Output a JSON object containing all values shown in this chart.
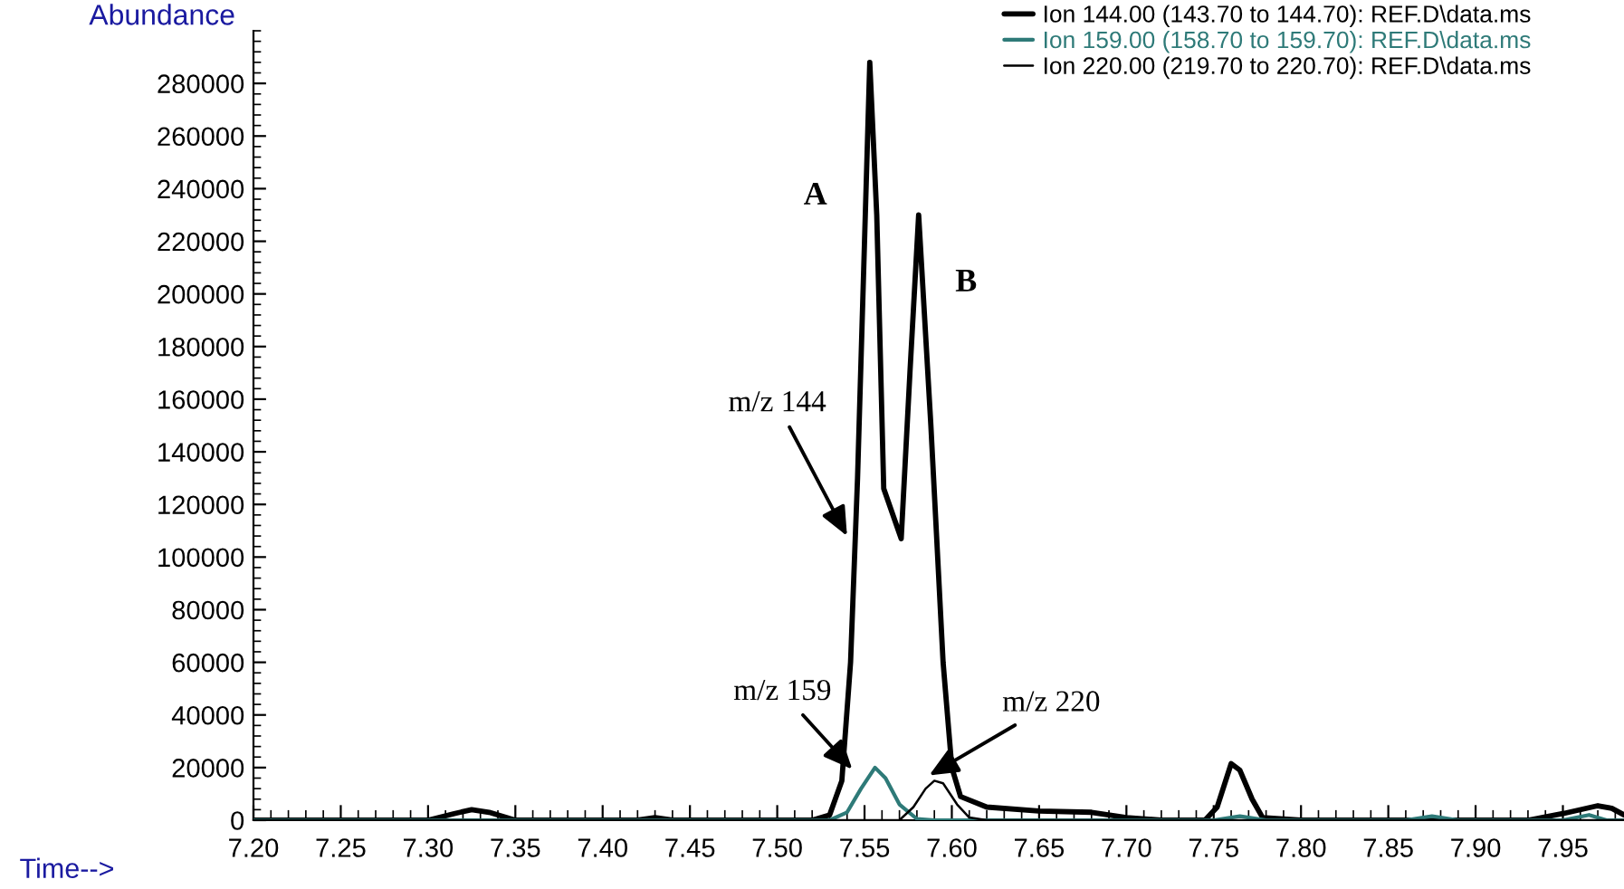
{
  "chart_data": {
    "type": "line",
    "ylabel": "Abundance",
    "xlabel": "Time-->",
    "xlim": [
      7.2,
      7.985
    ],
    "ylim": [
      0,
      300000
    ],
    "xticks": [
      {
        "value": 7.2,
        "label": "7.20"
      },
      {
        "value": 7.25,
        "label": "7.25"
      },
      {
        "value": 7.3,
        "label": "7.30"
      },
      {
        "value": 7.35,
        "label": "7.35"
      },
      {
        "value": 7.4,
        "label": "7.40"
      },
      {
        "value": 7.45,
        "label": "7.45"
      },
      {
        "value": 7.5,
        "label": "7.50"
      },
      {
        "value": 7.55,
        "label": "7.55"
      },
      {
        "value": 7.6,
        "label": "7.60"
      },
      {
        "value": 7.65,
        "label": "7.65"
      },
      {
        "value": 7.7,
        "label": "7.70"
      },
      {
        "value": 7.75,
        "label": "7.75"
      },
      {
        "value": 7.8,
        "label": "7.80"
      },
      {
        "value": 7.85,
        "label": "7.85"
      },
      {
        "value": 7.9,
        "label": "7.90"
      },
      {
        "value": 7.95,
        "label": "7.95"
      }
    ],
    "yticks": [
      0,
      20000,
      40000,
      60000,
      80000,
      100000,
      120000,
      140000,
      160000,
      180000,
      200000,
      220000,
      240000,
      260000,
      280000
    ],
    "grid": false,
    "legend": "top",
    "marker": "none",
    "line_style": "solid",
    "series": [
      {
        "name": "Ion 144.00 (143.70 to 144.70): REF.D\\data.ms",
        "color": "#000000",
        "x": [
          7.2,
          7.3,
          7.315,
          7.325,
          7.335,
          7.35,
          7.42,
          7.43,
          7.44,
          7.52,
          7.53,
          7.537,
          7.542,
          7.546,
          7.55,
          7.553,
          7.557,
          7.561,
          7.571,
          7.576,
          7.581,
          7.588,
          7.595,
          7.6,
          7.605,
          7.62,
          7.65,
          7.68,
          7.7,
          7.72,
          7.745,
          7.752,
          7.76,
          7.765,
          7.772,
          7.778,
          7.8,
          7.93,
          7.95,
          7.97,
          7.978,
          7.985
        ],
        "values": [
          0,
          0,
          2500,
          4000,
          3000,
          0,
          0,
          1000,
          0,
          0,
          2000,
          15000,
          60000,
          130000,
          220000,
          288000,
          230000,
          126000,
          107000,
          170000,
          230000,
          150000,
          60000,
          20000,
          9000,
          5000,
          3500,
          3000,
          1000,
          0,
          0,
          5000,
          21500,
          19000,
          8000,
          1000,
          0,
          0,
          2500,
          5500,
          4500,
          2000
        ]
      },
      {
        "name": "Ion 159.00 (158.70 to 159.70): REF.D\\data.ms",
        "color": "#2e7a78",
        "x": [
          7.2,
          7.53,
          7.54,
          7.548,
          7.556,
          7.562,
          7.57,
          7.58,
          7.59,
          7.75,
          7.765,
          7.78,
          7.86,
          7.875,
          7.89,
          7.95,
          7.965,
          7.975,
          7.985
        ],
        "values": [
          0,
          0,
          3000,
          12000,
          20000,
          16000,
          6000,
          500,
          0,
          0,
          1500,
          0,
          0,
          1500,
          0,
          0,
          2000,
          0,
          0
        ]
      },
      {
        "name": "Ion 220.00 (219.70 to 220.70): REF.D\\data.ms",
        "color": "#000000",
        "x": [
          7.2,
          7.57,
          7.578,
          7.585,
          7.59,
          7.595,
          7.603,
          7.61,
          7.62,
          7.985
        ],
        "values": [
          0,
          0,
          5000,
          12000,
          15000,
          14000,
          6000,
          1000,
          0,
          0
        ]
      }
    ],
    "annotations": [
      "A",
      "B",
      {
        "text": "m/z 144",
        "x": 7.54,
        "y": 108000
      },
      {
        "text": "m/z 159",
        "x": 7.543,
        "y": 19300
      },
      {
        "text": "m/z 220",
        "x": 7.587,
        "y": 17000
      }
    ]
  }
}
